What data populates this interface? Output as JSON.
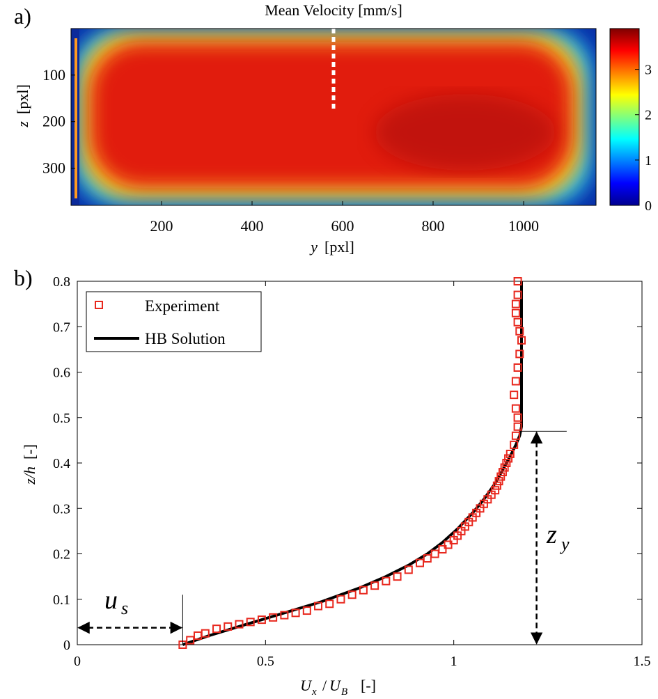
{
  "panel_a": {
    "label": "a)",
    "title": "Mean Velocity [mm/s]",
    "xlabel_var": "y",
    "xlabel_unit": "[pxl]",
    "ylabel_var": "z",
    "ylabel_unit": "[pxl]",
    "colorbar_ticks": [
      "0",
      "1",
      "2",
      "3"
    ]
  },
  "panel_b": {
    "label": "b)",
    "xlabel_num": "U",
    "xlabel_num_sub": "x",
    "xlabel_den": "U",
    "xlabel_den_sub": "B",
    "xlabel_unit": "[-]",
    "ylabel_var": "z/h",
    "ylabel_unit": "[-]",
    "legend": [
      "Experiment",
      "HB Solution"
    ],
    "annot_us": "u",
    "annot_us_sub": "s",
    "annot_zy": "z",
    "annot_zy_sub": "y"
  },
  "chart_data": [
    {
      "type": "heatmap",
      "title": "Mean Velocity [mm/s]",
      "xlabel": "y [pxl]",
      "ylabel": "z [pxl]",
      "xticks": [
        200,
        400,
        600,
        800,
        1000
      ],
      "yticks": [
        100,
        200,
        300
      ],
      "xlim": [
        0,
        1160
      ],
      "ylim": [
        380,
        0
      ],
      "colorbar": {
        "label": "Mean Velocity [mm/s]",
        "ticks": [
          0,
          1,
          2,
          3
        ],
        "range": [
          0,
          3.9
        ],
        "colormap": "jet"
      },
      "field_description": "plateau ~3.3 mm/s in core, max ~3.7 near y=850, z=230; decays to 0 at walls",
      "marker": {
        "type": "dashed white line",
        "y": 580,
        "z_range": [
          0,
          180
        ]
      }
    },
    {
      "type": "scatter",
      "xlabel": "U_x/U_B [-]",
      "ylabel": "z/h [-]",
      "xlim": [
        0,
        1.5
      ],
      "ylim": [
        0,
        0.8
      ],
      "xticks": [
        0,
        0.5,
        1,
        1.5
      ],
      "yticks": [
        0,
        0.1,
        0.2,
        0.3,
        0.4,
        0.5,
        0.6,
        0.7,
        0.8
      ],
      "legend_position": "top-left",
      "series": [
        {
          "name": "Experiment",
          "marker": "open square",
          "color": "#e8281e",
          "x": [
            0.28,
            0.3,
            0.32,
            0.34,
            0.37,
            0.4,
            0.43,
            0.46,
            0.49,
            0.52,
            0.55,
            0.58,
            0.61,
            0.64,
            0.67,
            0.7,
            0.73,
            0.76,
            0.79,
            0.82,
            0.85,
            0.88,
            0.91,
            0.93,
            0.95,
            0.97,
            0.985,
            1.0,
            1.01,
            1.02,
            1.03,
            1.04,
            1.05,
            1.06,
            1.07,
            1.08,
            1.09,
            1.1,
            1.11,
            1.115,
            1.12,
            1.125,
            1.13,
            1.135,
            1.14,
            1.145,
            1.15,
            1.16,
            1.165,
            1.17,
            1.17,
            1.165,
            1.16,
            1.165,
            1.17,
            1.175,
            1.18,
            1.175,
            1.17,
            1.165,
            1.165,
            1.17,
            1.17
          ],
          "y": [
            0.0,
            0.01,
            0.02,
            0.025,
            0.035,
            0.04,
            0.045,
            0.05,
            0.055,
            0.06,
            0.065,
            0.07,
            0.075,
            0.085,
            0.09,
            0.1,
            0.11,
            0.12,
            0.13,
            0.14,
            0.15,
            0.165,
            0.18,
            0.19,
            0.2,
            0.21,
            0.22,
            0.23,
            0.24,
            0.25,
            0.26,
            0.27,
            0.28,
            0.29,
            0.3,
            0.31,
            0.32,
            0.33,
            0.34,
            0.35,
            0.36,
            0.37,
            0.38,
            0.39,
            0.4,
            0.41,
            0.42,
            0.44,
            0.46,
            0.48,
            0.5,
            0.52,
            0.55,
            0.58,
            0.61,
            0.64,
            0.67,
            0.69,
            0.71,
            0.73,
            0.75,
            0.77,
            0.8
          ]
        },
        {
          "name": "HB Solution",
          "line": "solid",
          "color": "#000000",
          "x": [
            0.28,
            0.35,
            0.45,
            0.55,
            0.65,
            0.75,
            0.82,
            0.88,
            0.93,
            0.97,
            1.01,
            1.05,
            1.08,
            1.11,
            1.13,
            1.15,
            1.165,
            1.175,
            1.18,
            1.18,
            1.18,
            1.18
          ],
          "y": [
            0.0,
            0.02,
            0.045,
            0.07,
            0.095,
            0.125,
            0.15,
            0.175,
            0.2,
            0.225,
            0.255,
            0.29,
            0.32,
            0.355,
            0.385,
            0.415,
            0.44,
            0.46,
            0.48,
            0.55,
            0.7,
            0.8
          ]
        }
      ],
      "annotations": [
        {
          "text": "u_s",
          "type": "dashed double arrow",
          "x_range": [
            0,
            0.28
          ],
          "y": 0.065
        },
        {
          "text": "z_y",
          "type": "dashed double arrow",
          "x": 1.22,
          "y_range": [
            0,
            0.47
          ]
        }
      ]
    }
  ]
}
